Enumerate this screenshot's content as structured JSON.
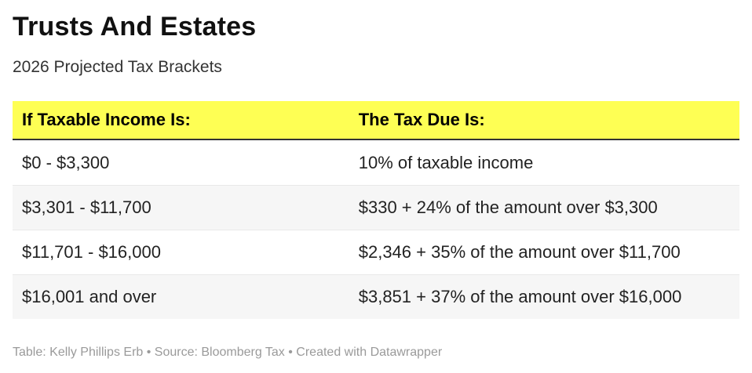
{
  "chart_data": {
    "type": "table",
    "title": "Trusts And Estates",
    "subtitle": "2026 Projected Tax Brackets",
    "columns": [
      "If Taxable Income Is:",
      "The Tax Due Is:"
    ],
    "rows": [
      [
        "$0 - $3,300",
        "10% of taxable income"
      ],
      [
        "$3,301 - $11,700",
        "$330 + 24% of the amount over $3,300"
      ],
      [
        "$11,701 - $16,000",
        "$2,346 + 35% of the amount over $11,700"
      ],
      [
        "$16,001 and over",
        "$3,851 + 37% of the amount over $16,000"
      ]
    ],
    "footer": "Table: Kelly Phillips Erb • Source: Bloomberg Tax • Created with Datawrapper",
    "layout_hints": {
      "header_highlighted": true,
      "striped_rows": true,
      "column_split_percent": [
        46.3,
        53.7
      ]
    }
  },
  "colors": {
    "header_bg": "#feff54",
    "header_border": "#333333",
    "header_text": "#000000",
    "title_text": "#111111",
    "subtitle_text": "#333333",
    "body_text": "#222222",
    "row_alt_bg": "#f6f6f6",
    "row_separator": "#e9e9e9",
    "footer_text": "#9a9a9a"
  }
}
